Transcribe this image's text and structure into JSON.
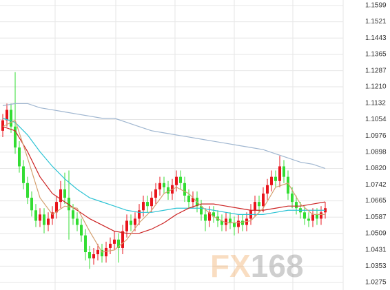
{
  "chart_data": {
    "type": "candlestick",
    "watermark": [
      "FX",
      "168"
    ],
    "up_color": "#e8141c",
    "down_color": "#33dd33",
    "grid": true,
    "ylim": [
      1.0239,
      1.1625
    ],
    "yticks": [
      1.1599,
      1.1521,
      1.1443,
      1.1365,
      1.1287,
      {
        "value": 1.121,
        "label": "1.1210"
      },
      1.1132,
      1.1054,
      1.0976,
      1.0898,
      {
        "value": 1.082,
        "label": "1.0820"
      },
      1.0742,
      1.0665,
      1.0587,
      1.0509,
      1.0431,
      1.0353,
      1.0275
    ],
    "open": [
      1.1,
      1.105,
      1.11,
      1.102,
      1.092,
      1.083,
      1.075,
      1.068,
      1.062,
      1.057,
      1.06,
      1.055,
      1.058,
      1.061,
      1.066,
      1.072,
      1.068,
      1.062,
      1.058,
      1.055,
      1.05,
      1.042,
      1.039,
      1.041,
      1.043,
      1.04,
      1.044,
      1.046,
      1.048,
      1.044,
      1.052,
      1.057,
      1.055,
      1.058,
      1.062,
      1.066,
      1.064,
      1.068,
      1.072,
      1.075,
      1.073,
      1.07,
      1.074,
      1.078,
      1.075,
      1.069,
      1.066,
      1.068,
      1.064,
      1.06,
      1.057,
      1.061,
      1.059,
      1.057,
      1.055,
      1.058,
      1.056,
      1.054,
      1.057,
      1.055,
      1.058,
      1.062,
      1.066,
      1.064,
      1.07,
      1.074,
      1.078,
      1.076,
      1.083,
      1.078,
      1.07,
      1.066,
      1.063,
      1.061,
      1.058,
      1.057,
      1.06,
      1.058,
      1.061
    ],
    "high": [
      1.108,
      1.113,
      1.113,
      1.128,
      1.095,
      1.086,
      1.078,
      1.071,
      1.065,
      1.063,
      1.063,
      1.061,
      1.064,
      1.069,
      1.076,
      1.08,
      1.081,
      1.065,
      1.061,
      1.058,
      1.053,
      1.045,
      1.044,
      1.046,
      1.046,
      1.047,
      1.049,
      1.052,
      1.051,
      1.055,
      1.06,
      1.06,
      1.061,
      1.065,
      1.069,
      1.069,
      1.071,
      1.075,
      1.078,
      1.078,
      1.076,
      1.077,
      1.081,
      1.081,
      1.078,
      1.072,
      1.071,
      1.071,
      1.067,
      1.063,
      1.064,
      1.064,
      1.062,
      1.06,
      1.061,
      1.061,
      1.059,
      1.06,
      1.06,
      1.061,
      1.065,
      1.069,
      1.069,
      1.073,
      1.077,
      1.081,
      1.081,
      1.088,
      1.086,
      1.081,
      1.073,
      1.069,
      1.066,
      1.064,
      1.061,
      1.063,
      1.063,
      1.064,
      1.066
    ],
    "low": [
      1.097,
      1.102,
      1.099,
      1.089,
      1.08,
      1.072,
      1.065,
      1.059,
      1.054,
      1.054,
      1.051,
      1.052,
      1.055,
      1.058,
      1.063,
      1.065,
      1.048,
      1.055,
      1.052,
      1.047,
      1.038,
      1.034,
      1.036,
      1.038,
      1.037,
      1.037,
      1.041,
      1.043,
      1.037,
      1.041,
      1.049,
      1.052,
      1.052,
      1.055,
      1.059,
      1.061,
      1.061,
      1.065,
      1.069,
      1.07,
      1.067,
      1.067,
      1.071,
      1.072,
      1.066,
      1.063,
      1.063,
      1.061,
      1.057,
      1.052,
      1.054,
      1.056,
      1.054,
      1.052,
      1.052,
      1.053,
      1.05,
      1.051,
      1.052,
      1.052,
      1.055,
      1.059,
      1.061,
      1.061,
      1.067,
      1.071,
      1.073,
      1.073,
      1.075,
      1.067,
      1.063,
      1.06,
      1.058,
      1.055,
      1.054,
      1.054,
      1.055,
      1.055,
      1.058
    ],
    "close": [
      1.105,
      1.11,
      1.102,
      1.092,
      1.083,
      1.075,
      1.068,
      1.062,
      1.057,
      1.06,
      1.055,
      1.058,
      1.061,
      1.066,
      1.072,
      1.068,
      1.062,
      1.058,
      1.055,
      1.05,
      1.042,
      1.039,
      1.041,
      1.043,
      1.04,
      1.044,
      1.046,
      1.048,
      1.044,
      1.052,
      1.057,
      1.055,
      1.058,
      1.062,
      1.066,
      1.064,
      1.068,
      1.072,
      1.075,
      1.073,
      1.07,
      1.074,
      1.078,
      1.075,
      1.069,
      1.066,
      1.068,
      1.064,
      1.06,
      1.057,
      1.061,
      1.059,
      1.057,
      1.055,
      1.058,
      1.056,
      1.054,
      1.057,
      1.055,
      1.058,
      1.062,
      1.066,
      1.064,
      1.07,
      1.074,
      1.078,
      1.076,
      1.083,
      1.078,
      1.07,
      1.066,
      1.063,
      1.061,
      1.058,
      1.057,
      1.06,
      1.058,
      1.061,
      1.063
    ],
    "ma_x": [
      0,
      3,
      6,
      9,
      12,
      15,
      18,
      21,
      24,
      27,
      30,
      33,
      36,
      39,
      42,
      45,
      48,
      51,
      54,
      57,
      60,
      63,
      66,
      69,
      72,
      75,
      78
    ],
    "series": [
      {
        "color": "#9fb6d0",
        "values": [
          1.112,
          1.113,
          1.113,
          1.111,
          1.11,
          1.109,
          1.108,
          1.107,
          1.106,
          1.106,
          1.104,
          1.102,
          1.1,
          1.099,
          1.098,
          1.097,
          1.096,
          1.095,
          1.094,
          1.093,
          1.092,
          1.091,
          1.089,
          1.087,
          1.085,
          1.084,
          1.082
        ]
      },
      {
        "color": "#2cc3d4",
        "values": [
          1.106,
          1.104,
          1.098,
          1.09,
          1.083,
          1.077,
          1.072,
          1.068,
          1.066,
          1.064,
          1.062,
          1.061,
          1.061,
          1.062,
          1.063,
          1.063,
          1.063,
          1.062,
          1.061,
          1.06,
          1.06,
          1.06,
          1.061,
          1.062,
          1.062,
          1.062,
          1.062
        ]
      },
      {
        "color": "#cc2222",
        "values": [
          1.102,
          1.1,
          1.09,
          1.078,
          1.07,
          1.066,
          1.062,
          1.058,
          1.055,
          1.052,
          1.051,
          1.051,
          1.053,
          1.056,
          1.06,
          1.063,
          1.065,
          1.065,
          1.064,
          1.063,
          1.062,
          1.062,
          1.063,
          1.064,
          1.064,
          1.065,
          1.066
        ]
      },
      {
        "color": "#d4a070",
        "values": [
          1.102,
          1.105,
          1.087,
          1.068,
          1.06,
          1.064,
          1.063,
          1.052,
          1.042,
          1.043,
          1.048,
          1.056,
          1.062,
          1.07,
          1.073,
          1.07,
          1.064,
          1.059,
          1.056,
          1.056,
          1.057,
          1.063,
          1.073,
          1.075,
          1.065,
          1.06,
          1.06
        ]
      }
    ]
  }
}
